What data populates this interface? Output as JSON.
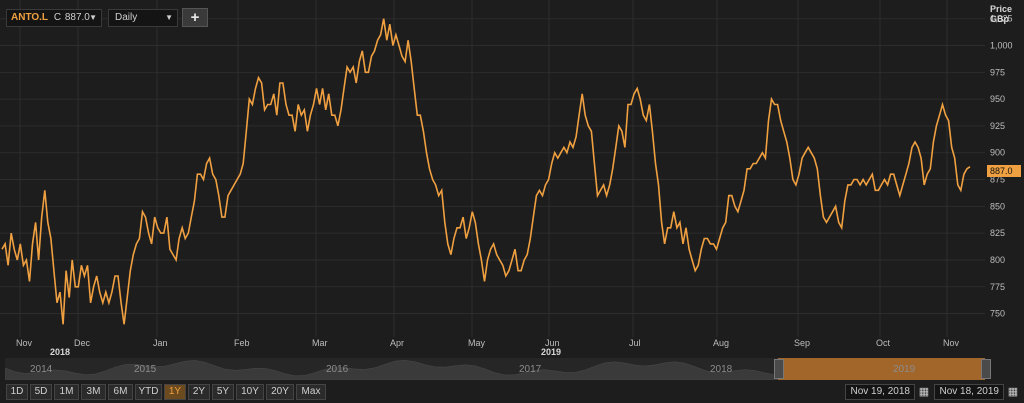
{
  "toolbar": {
    "symbol": "ANTO.L",
    "price_prefix": "C",
    "price": "887.0",
    "interval": "Daily",
    "add_label": "+"
  },
  "axis": {
    "price_label": "Price",
    "unit_label": "GBp",
    "last_price": "887.0"
  },
  "chart_data": {
    "type": "line",
    "ylim": [
      730,
      1035
    ],
    "y_ticks": [
      "750",
      "775",
      "800",
      "825",
      "850",
      "875",
      "900",
      "925",
      "950",
      "975",
      "1,000",
      "1,025"
    ],
    "x_ticks": [
      {
        "label": "Nov",
        "year": "2018"
      },
      {
        "label": "Dec",
        "year": ""
      },
      {
        "label": "Jan",
        "year": ""
      },
      {
        "label": "Feb",
        "year": ""
      },
      {
        "label": "Mar",
        "year": ""
      },
      {
        "label": "Apr",
        "year": ""
      },
      {
        "label": "May",
        "year": ""
      },
      {
        "label": "Jun",
        "year": "2019"
      },
      {
        "label": "Jul",
        "year": ""
      },
      {
        "label": "Aug",
        "year": ""
      },
      {
        "label": "Sep",
        "year": ""
      },
      {
        "label": "Oct",
        "year": ""
      },
      {
        "label": "Nov",
        "year": ""
      }
    ],
    "series": [
      {
        "color": "#f0a040",
        "values": [
          810,
          815,
          795,
          825,
          810,
          800,
          815,
          795,
          800,
          780,
          815,
          835,
          800,
          840,
          865,
          835,
          820,
          790,
          760,
          770,
          740,
          790,
          765,
          800,
          775,
          775,
          795,
          785,
          795,
          760,
          775,
          785,
          770,
          760,
          770,
          760,
          770,
          785,
          785,
          760,
          740,
          765,
          790,
          805,
          815,
          820,
          845,
          840,
          825,
          815,
          840,
          830,
          825,
          825,
          840,
          810,
          805,
          800,
          820,
          830,
          820,
          825,
          840,
          855,
          880,
          880,
          875,
          890,
          895,
          880,
          875,
          860,
          840,
          840,
          860,
          865,
          870,
          875,
          880,
          890,
          920,
          950,
          945,
          960,
          970,
          965,
          940,
          945,
          945,
          955,
          935,
          965,
          965,
          945,
          935,
          935,
          920,
          945,
          935,
          940,
          920,
          935,
          945,
          960,
          945,
          960,
          940,
          955,
          935,
          935,
          925,
          940,
          960,
          980,
          975,
          980,
          965,
          985,
          995,
          975,
          975,
          990,
          995,
          1005,
          1010,
          1025,
          1005,
          1020,
          1000,
          1010,
          1000,
          990,
          985,
          1005,
          985,
          960,
          935,
          935,
          920,
          900,
          885,
          875,
          870,
          860,
          865,
          835,
          815,
          805,
          820,
          830,
          830,
          840,
          820,
          830,
          845,
          835,
          815,
          800,
          780,
          800,
          810,
          815,
          805,
          800,
          795,
          785,
          790,
          800,
          810,
          790,
          790,
          800,
          805,
          820,
          840,
          860,
          865,
          860,
          870,
          875,
          890,
          900,
          895,
          900,
          905,
          900,
          910,
          905,
          915,
          935,
          955,
          935,
          925,
          920,
          890,
          860,
          865,
          870,
          860,
          870,
          885,
          905,
          925,
          920,
          905,
          945,
          945,
          955,
          960,
          950,
          935,
          930,
          945,
          920,
          890,
          870,
          835,
          815,
          830,
          830,
          845,
          830,
          835,
          815,
          830,
          810,
          800,
          790,
          795,
          810,
          820,
          820,
          815,
          815,
          810,
          820,
          830,
          835,
          860,
          860,
          850,
          845,
          855,
          865,
          885,
          885,
          890,
          890,
          895,
          900,
          895,
          930,
          950,
          945,
          945,
          930,
          920,
          910,
          895,
          875,
          870,
          880,
          895,
          900,
          905,
          900,
          895,
          885,
          860,
          840,
          835,
          840,
          845,
          850,
          835,
          830,
          855,
          870,
          870,
          875,
          875,
          870,
          875,
          870,
          875,
          880,
          865,
          865,
          870,
          875,
          870,
          880,
          880,
          870,
          860,
          870,
          880,
          890,
          905,
          910,
          905,
          895,
          870,
          880,
          885,
          910,
          925,
          935,
          945,
          935,
          930,
          905,
          895,
          870,
          865,
          880,
          885,
          887
        ]
      }
    ]
  },
  "navigator": {
    "years": [
      "2014",
      "2015",
      "2016",
      "2017",
      "2018",
      "2019"
    ]
  },
  "ranges": {
    "buttons": [
      "1D",
      "5D",
      "1M",
      "3M",
      "6M",
      "YTD",
      "1Y",
      "2Y",
      "5Y",
      "10Y",
      "20Y",
      "Max"
    ],
    "active": "1Y"
  },
  "dates": {
    "start": "Nov 19, 2018",
    "end": "Nov 18, 2019"
  }
}
